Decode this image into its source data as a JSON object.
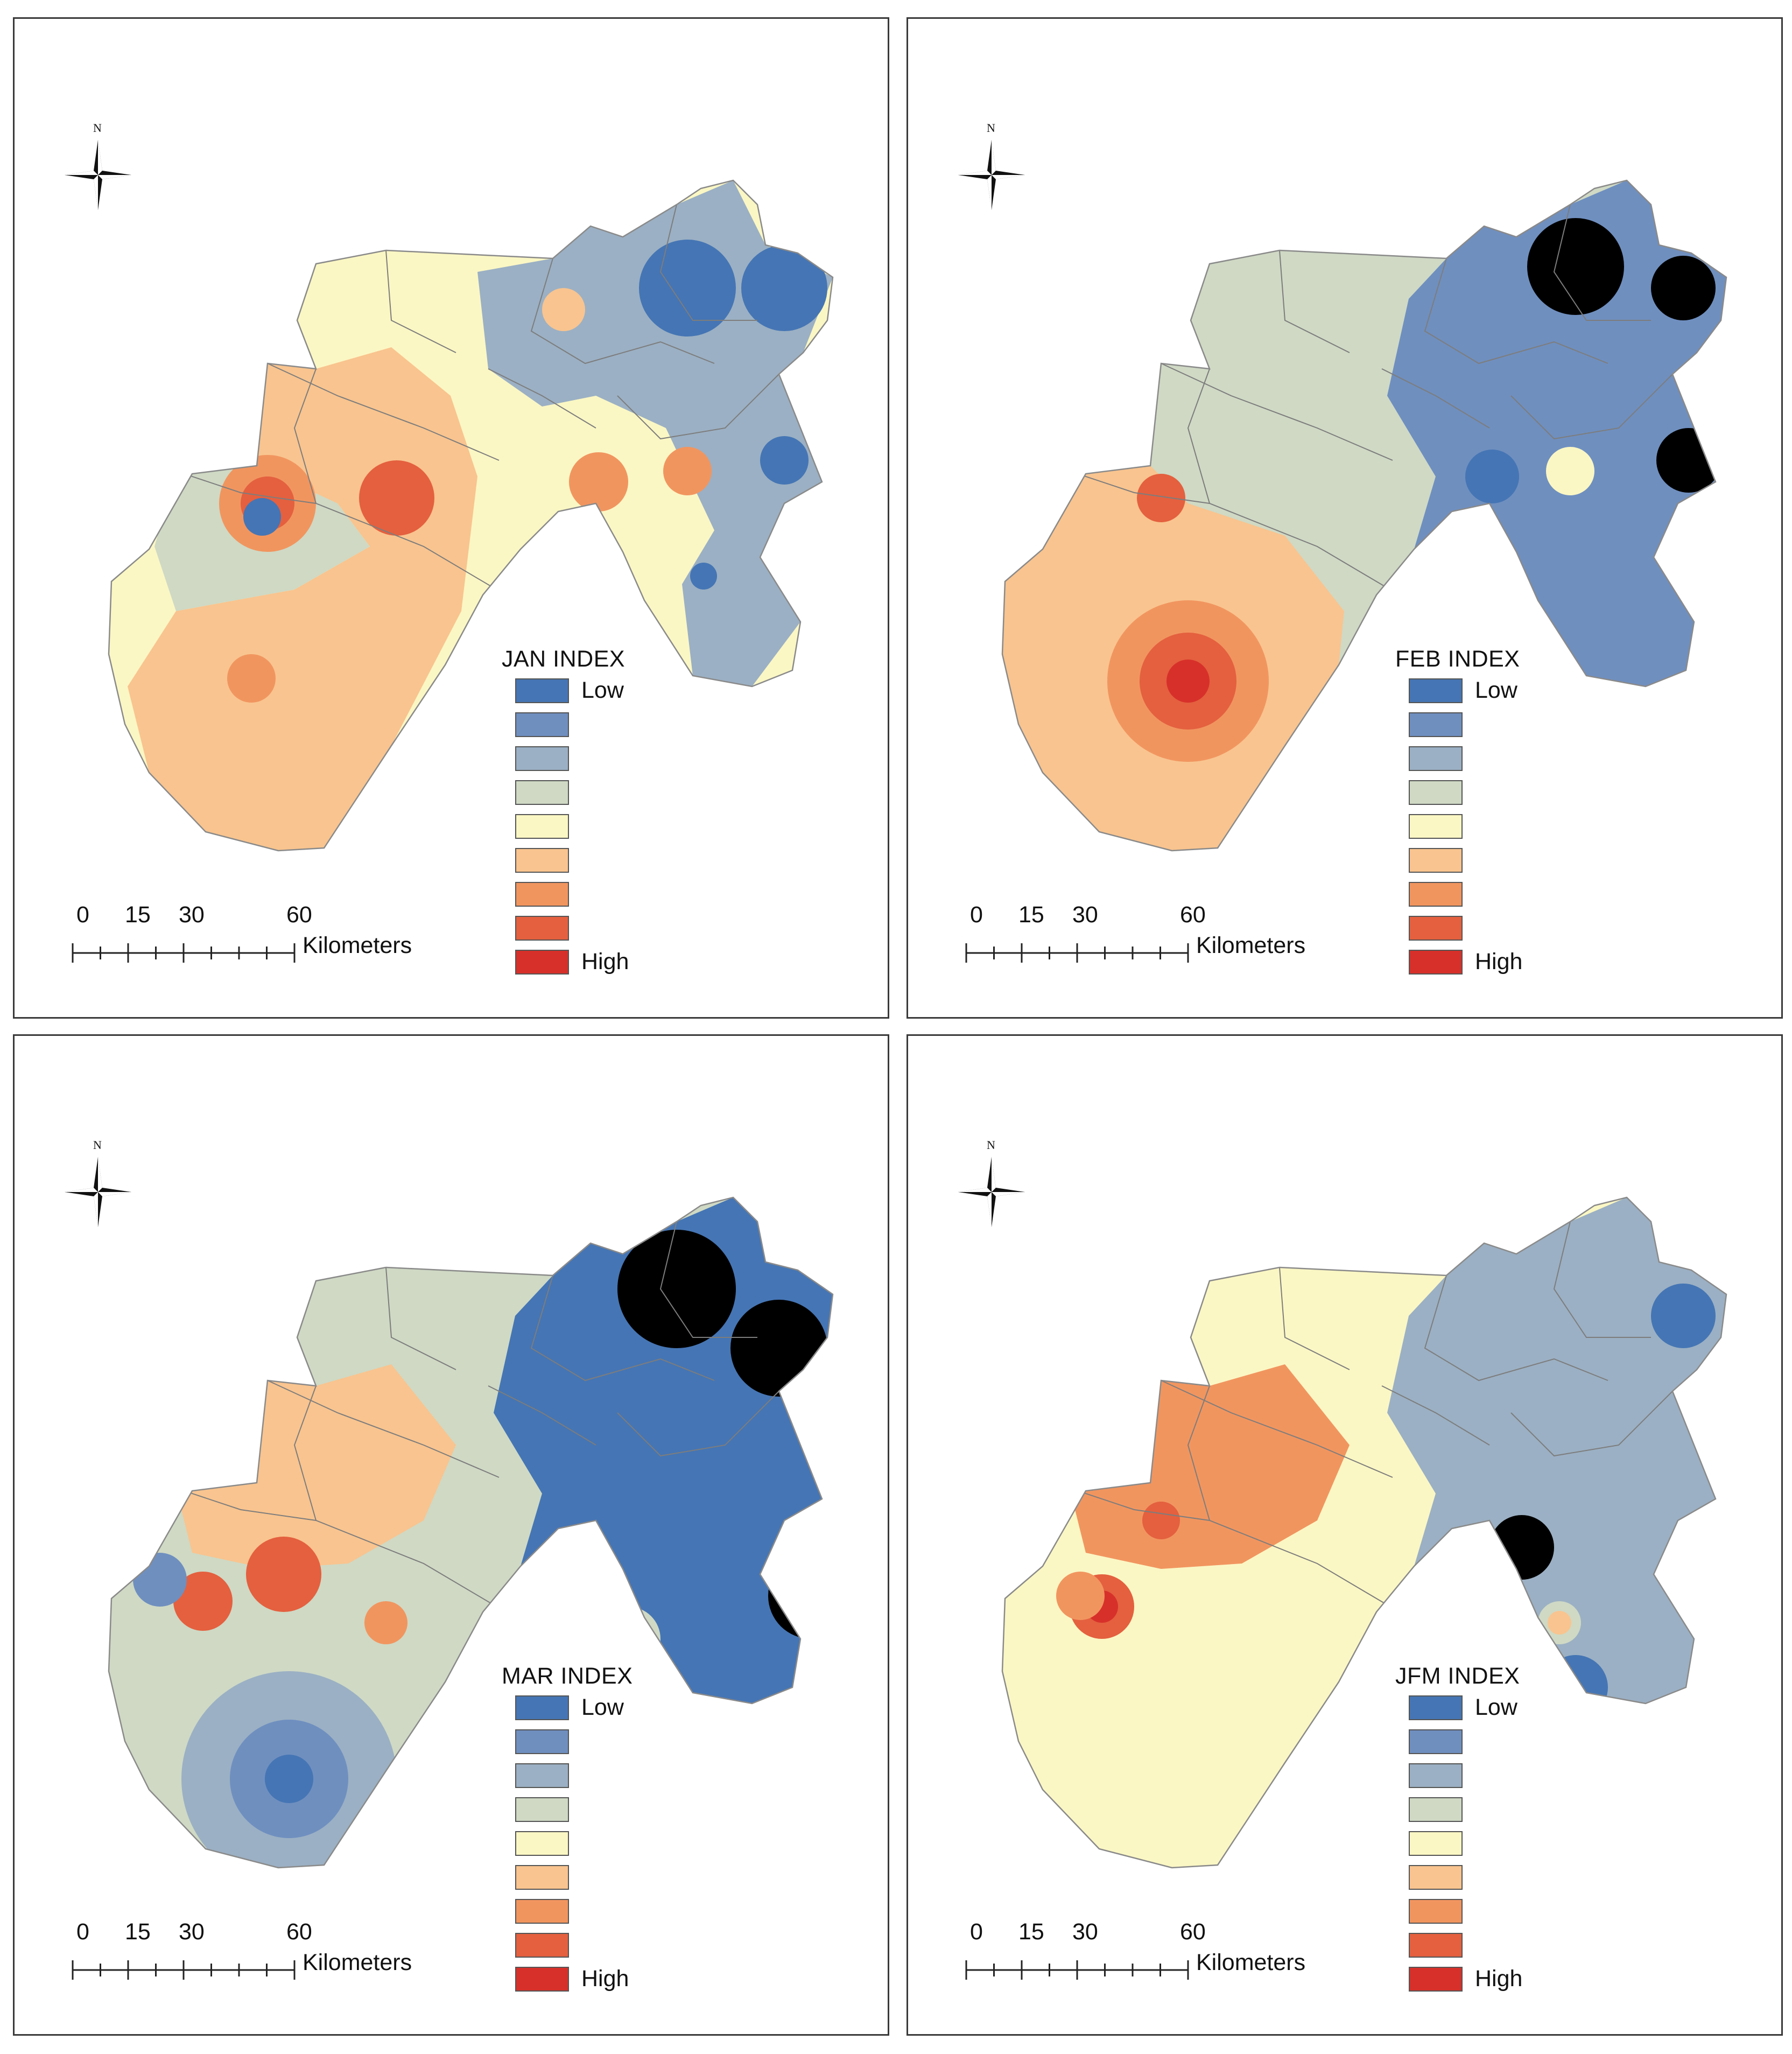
{
  "panels": [
    {
      "legend_title": "JAN INDEX",
      "base_class": 5,
      "legend": {
        "low": "Low",
        "high": "High"
      },
      "zones": [
        {
          "class": 6,
          "shape": "west"
        },
        {
          "class": 4,
          "shape": "center"
        },
        {
          "class": 3,
          "shape": "northeast"
        }
      ]
    },
    {
      "legend_title": "FEB INDEX",
      "base_class": 4,
      "legend": {
        "low": "Low",
        "high": "High"
      },
      "zones": [
        {
          "class": 6,
          "shape": "southwest"
        },
        {
          "class": 2,
          "shape": "east"
        }
      ]
    },
    {
      "legend_title": "MAR INDEX",
      "base_class": 4,
      "legend": {
        "low": "Low",
        "high": "High"
      },
      "zones": [
        {
          "class": 1,
          "shape": "east"
        },
        {
          "class": 6,
          "shape": "northwest"
        }
      ]
    },
    {
      "legend_title": "JFM INDEX",
      "base_class": 5,
      "legend": {
        "low": "Low",
        "high": "High"
      },
      "zones": [
        {
          "class": 3,
          "shape": "east"
        },
        {
          "class": 7,
          "shape": "northwest"
        }
      ]
    }
  ],
  "scale_bar": {
    "ticks": [
      "0",
      "15",
      "30",
      "60"
    ],
    "unit": "Kilometers"
  },
  "north_arrow": {
    "label": "N",
    "icon": "compass-rose-icon"
  },
  "class_colors": [
    "#4575b4",
    "#6f8fbf",
    "#9bb0c4",
    "#cfd9c4",
    "#fbf7c4",
    "#f9c48f",
    "#f1955f",
    "#e4603f",
    "#d7302a"
  ]
}
